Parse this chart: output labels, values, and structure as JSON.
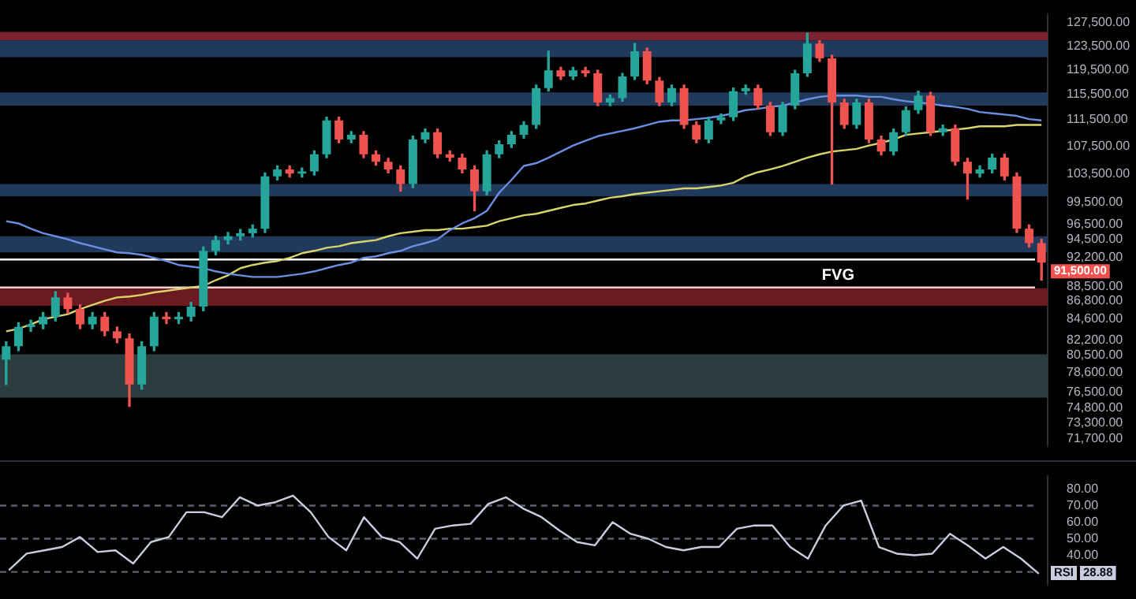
{
  "chart_data": [
    {
      "type": "candlestick",
      "log": true,
      "grid": false,
      "tick_labels": "y",
      "marker": "none",
      "categories": [
        null,
        null,
        null,
        null,
        null,
        null,
        null,
        null,
        null,
        null,
        null,
        null,
        null,
        null,
        null,
        null,
        null,
        null,
        null,
        null,
        null,
        null,
        null,
        null,
        null,
        null,
        null,
        null,
        null,
        null,
        null,
        null,
        null,
        null,
        null,
        null,
        null,
        null,
        null,
        null,
        null,
        null,
        null,
        null,
        null,
        null,
        null,
        null,
        null,
        null,
        null,
        null,
        null,
        null,
        null,
        null,
        null,
        null,
        null,
        null,
        null,
        null,
        null,
        null,
        null,
        null,
        null,
        null,
        null,
        null,
        null,
        null,
        null,
        null,
        null,
        null,
        null,
        null,
        null,
        null,
        null,
        null,
        null,
        null,
        null
      ],
      "ohlc": [
        [
          80000,
          82000,
          77300,
          81500
        ],
        [
          81500,
          84200,
          81000,
          83700
        ],
        [
          83700,
          84500,
          83200,
          84000
        ],
        [
          84000,
          85400,
          83500,
          84900
        ],
        [
          84900,
          87900,
          84400,
          87200
        ],
        [
          87200,
          87700,
          85300,
          85800
        ],
        [
          85800,
          86300,
          83500,
          84000
        ],
        [
          84000,
          85400,
          83500,
          84900
        ],
        [
          84900,
          85400,
          82700,
          83200
        ],
        [
          83200,
          83700,
          81900,
          82400
        ],
        [
          82400,
          82900,
          75000,
          77300
        ],
        [
          77300,
          82000,
          76800,
          81500
        ],
        [
          81500,
          85400,
          81000,
          84900
        ],
        [
          84900,
          85400,
          84100,
          84600
        ],
        [
          84600,
          85400,
          84100,
          84900
        ],
        [
          84900,
          86600,
          84400,
          86100
        ],
        [
          86100,
          93500,
          85600,
          93000
        ],
        [
          93000,
          94900,
          92500,
          94400
        ],
        [
          94400,
          95400,
          93900,
          94900
        ],
        [
          94900,
          95800,
          94400,
          95300
        ],
        [
          95300,
          96400,
          94800,
          95900
        ],
        [
          95900,
          103600,
          95400,
          103100
        ],
        [
          103100,
          104600,
          102600,
          104100
        ],
        [
          104100,
          104600,
          103000,
          103500
        ],
        [
          103500,
          104300,
          103000,
          103800
        ],
        [
          103800,
          106800,
          103300,
          106300
        ],
        [
          106300,
          111900,
          105800,
          111400
        ],
        [
          111400,
          111900,
          108000,
          108500
        ],
        [
          108500,
          109700,
          108000,
          109200
        ],
        [
          109200,
          109700,
          105800,
          106300
        ],
        [
          106300,
          106800,
          104700,
          105200
        ],
        [
          105200,
          105700,
          103600,
          104100
        ],
        [
          104100,
          104600,
          101000,
          102000
        ],
        [
          102000,
          109000,
          101500,
          108500
        ],
        [
          108500,
          110100,
          108000,
          109600
        ],
        [
          109600,
          110100,
          105800,
          106300
        ],
        [
          106300,
          106800,
          105300,
          105800
        ],
        [
          105800,
          106300,
          103600,
          104100
        ],
        [
          104100,
          104600,
          98300,
          101000
        ],
        [
          101000,
          106800,
          100500,
          106300
        ],
        [
          106300,
          108300,
          105800,
          107800
        ],
        [
          107800,
          109700,
          107300,
          109200
        ],
        [
          109200,
          111200,
          108700,
          110700
        ],
        [
          110700,
          117000,
          110200,
          116500
        ],
        [
          116500,
          122600,
          116000,
          119400
        ],
        [
          119400,
          119900,
          117900,
          118400
        ],
        [
          118400,
          119900,
          117900,
          119400
        ],
        [
          119400,
          119900,
          118400,
          118900
        ],
        [
          118900,
          119400,
          113700,
          114200
        ],
        [
          114200,
          115400,
          113700,
          114900
        ],
        [
          114900,
          118900,
          114400,
          118400
        ],
        [
          118400,
          123900,
          117900,
          122600
        ],
        [
          122600,
          123100,
          117200,
          117700
        ],
        [
          117700,
          118200,
          113700,
          114200
        ],
        [
          114200,
          117000,
          113700,
          116500
        ],
        [
          116500,
          117000,
          110200,
          110700
        ],
        [
          110700,
          111200,
          108000,
          108500
        ],
        [
          108500,
          111900,
          108000,
          111400
        ],
        [
          111400,
          112400,
          110900,
          111900
        ],
        [
          111900,
          116500,
          111400,
          116000
        ],
        [
          116000,
          117000,
          115500,
          116500
        ],
        [
          116500,
          117000,
          113200,
          113700
        ],
        [
          113700,
          114200,
          109100,
          109600
        ],
        [
          109600,
          114200,
          109100,
          113700
        ],
        [
          113700,
          119400,
          113200,
          118900
        ],
        [
          118900,
          125700,
          118400,
          123900
        ],
        [
          123900,
          124400,
          120900,
          121400
        ],
        [
          121400,
          121900,
          102000,
          114200
        ],
        [
          114200,
          114700,
          110200,
          110700
        ],
        [
          110700,
          114700,
          110200,
          114200
        ],
        [
          114200,
          114700,
          108000,
          108500
        ],
        [
          108500,
          109000,
          106200,
          106700
        ],
        [
          106700,
          110100,
          106200,
          109600
        ],
        [
          109600,
          113500,
          109100,
          113000
        ],
        [
          113000,
          116000,
          112500,
          115300
        ],
        [
          115300,
          115800,
          109100,
          109600
        ],
        [
          109600,
          110700,
          109100,
          110200
        ],
        [
          110200,
          110700,
          104700,
          105200
        ],
        [
          105200,
          105700,
          99900,
          103500
        ],
        [
          103500,
          104600,
          103000,
          104100
        ],
        [
          104100,
          106300,
          103600,
          105800
        ],
        [
          105800,
          106300,
          102600,
          103100
        ],
        [
          103100,
          103600,
          95400,
          95900
        ],
        [
          95900,
          96400,
          93500,
          94000
        ],
        [
          94000,
          94500,
          89300,
          91500
        ]
      ],
      "series": [
        {
          "type": "line",
          "color": "#6b8fe0",
          "values": [
            96900,
            96600,
            95900,
            95300,
            94900,
            94500,
            94000,
            93600,
            93200,
            92800,
            92700,
            92500,
            92100,
            91700,
            91200,
            91000,
            90800,
            90400,
            90100,
            89900,
            89700,
            89700,
            89700,
            89900,
            90100,
            90400,
            90800,
            91200,
            91500,
            92100,
            92300,
            92700,
            93000,
            93600,
            94000,
            94500,
            95700,
            96600,
            97300,
            98300,
            100800,
            102600,
            104600,
            105000,
            105800,
            106700,
            107600,
            108300,
            109000,
            109400,
            109800,
            110200,
            110700,
            111200,
            111400,
            111400,
            111600,
            111800,
            112100,
            112500,
            113000,
            113200,
            113500,
            113700,
            114200,
            114700,
            115100,
            115300,
            115300,
            115300,
            115100,
            115100,
            114700,
            114400,
            114200,
            114000,
            113700,
            113500,
            113200,
            112700,
            112500,
            112300,
            112100,
            111600,
            111400
          ]
        },
        {
          "type": "line",
          "color": "#d9d36c",
          "values": [
            83200,
            83500,
            84000,
            84600,
            84900,
            85200,
            85800,
            86300,
            86800,
            87200,
            87300,
            87500,
            87800,
            88000,
            88200,
            88400,
            88600,
            89300,
            89900,
            90800,
            91200,
            91500,
            91700,
            92100,
            92700,
            93000,
            93400,
            93600,
            94000,
            94200,
            94400,
            94900,
            95300,
            95500,
            95700,
            95700,
            95900,
            95900,
            96100,
            96300,
            96900,
            97300,
            97700,
            97900,
            98300,
            98700,
            99100,
            99300,
            99700,
            100100,
            100300,
            100600,
            100800,
            101000,
            101200,
            101400,
            101400,
            101600,
            101800,
            102200,
            103100,
            103700,
            104100,
            104600,
            105200,
            105800,
            106300,
            106700,
            106900,
            107100,
            107600,
            108000,
            108500,
            109200,
            109400,
            109600,
            109800,
            110000,
            110200,
            110500,
            110500,
            110500,
            110700,
            110700,
            110700
          ]
        }
      ],
      "ylim": [
        70950,
        129100
      ],
      "yticks": [
        {
          "value": 127500,
          "label": "127,500.00"
        },
        {
          "value": 123500,
          "label": "123,500.00"
        },
        {
          "value": 119500,
          "label": "119,500.00"
        },
        {
          "value": 115500,
          "label": "115,500.00"
        },
        {
          "value": 111500,
          "label": "111,500.00"
        },
        {
          "value": 107500,
          "label": "107,500.00"
        },
        {
          "value": 103500,
          "label": "103,500.00"
        },
        {
          "value": 99500,
          "label": "99,500.00"
        },
        {
          "value": 96500,
          "label": "96,500.00"
        },
        {
          "value": 94500,
          "label": "94,500.00"
        },
        {
          "value": 92200,
          "label": "92,200.00"
        },
        {
          "value": 88500,
          "label": "88,500.00"
        },
        {
          "value": 86800,
          "label": "86,800.00"
        },
        {
          "value": 84600,
          "label": "84,600.00"
        },
        {
          "value": 82200,
          "label": "82,200.00"
        },
        {
          "value": 80500,
          "label": "80,500.00"
        },
        {
          "value": 78600,
          "label": "78,600.00"
        },
        {
          "value": 76500,
          "label": "76,500.00"
        },
        {
          "value": 74800,
          "label": "74,800.00"
        },
        {
          "value": 73300,
          "label": "73,300.00"
        },
        {
          "value": 71700,
          "label": "71,700.00"
        }
      ],
      "bands": [
        {
          "axis": "y",
          "from": 124400,
          "to": 125900,
          "color": "#7a2230"
        },
        {
          "axis": "y",
          "from": 121600,
          "to": 124400,
          "color": "#22395e"
        },
        {
          "axis": "y",
          "from": 113700,
          "to": 115800,
          "color": "#22395e"
        },
        {
          "axis": "y",
          "from": 100300,
          "to": 102000,
          "color": "#22395e"
        },
        {
          "axis": "y",
          "from": 92800,
          "to": 94900,
          "color": "#22395e"
        },
        {
          "axis": "y",
          "from": 86200,
          "to": 88300,
          "color": "#6b1a22"
        },
        {
          "axis": "y",
          "from": 75900,
          "to": 80600,
          "color": "#2b3d3f"
        }
      ],
      "ref_lines": [
        {
          "axis": "y",
          "value": 91900,
          "label": "FVG",
          "color": "#ffffff",
          "line_style": "solid"
        },
        {
          "axis": "y",
          "value": 88400,
          "color": "#f2d0d0",
          "line_style": "solid"
        }
      ],
      "annotations": [
        "91,500.00"
      ]
    },
    {
      "type": "line",
      "grid": false,
      "tick_labels": "y",
      "marker": "none",
      "categories": [
        null,
        null,
        null,
        null,
        null,
        null,
        null,
        null,
        null,
        null,
        null,
        null,
        null,
        null,
        null,
        null,
        null,
        null,
        null,
        null,
        null,
        null,
        null,
        null,
        null,
        null,
        null,
        null,
        null,
        null,
        null,
        null,
        null,
        null,
        null,
        null,
        null,
        null,
        null,
        null,
        null,
        null,
        null,
        null,
        null,
        null,
        null,
        null,
        null,
        null,
        null,
        null,
        null,
        null,
        null,
        null,
        null,
        null,
        null
      ],
      "series": [
        {
          "color": "#c8cde0",
          "values": [
            31,
            41,
            43,
            45,
            51,
            42,
            43,
            35,
            48,
            51,
            66,
            66,
            63,
            75,
            70,
            72,
            76,
            66,
            51,
            43,
            63,
            51,
            48,
            38,
            56,
            58,
            59,
            71,
            75,
            68,
            63,
            55,
            48,
            46,
            60,
            53,
            50,
            45,
            43,
            45,
            45,
            56,
            58,
            58,
            45,
            38,
            58,
            70,
            73,
            45,
            41,
            40,
            41,
            53,
            46,
            38,
            45,
            38,
            28.88
          ]
        }
      ],
      "ylim": [
        22,
        88
      ],
      "yticks": [
        {
          "value": 80,
          "label": "80.00"
        },
        {
          "value": 70,
          "label": "70.00"
        },
        {
          "value": 60,
          "label": "60.00"
        },
        {
          "value": 50,
          "label": "50.00"
        },
        {
          "value": 40,
          "label": "40.00"
        }
      ],
      "ref_lines": [
        {
          "axis": "y",
          "value": 70,
          "color": "#5d606b",
          "line_style": "dashed"
        },
        {
          "axis": "y",
          "value": 50,
          "color": "#5d606b",
          "line_style": "dashed"
        },
        {
          "axis": "y",
          "value": 30,
          "color": "#5d606b",
          "line_style": "dashed"
        }
      ],
      "annotations": [
        "RSI",
        "28.88"
      ]
    }
  ]
}
